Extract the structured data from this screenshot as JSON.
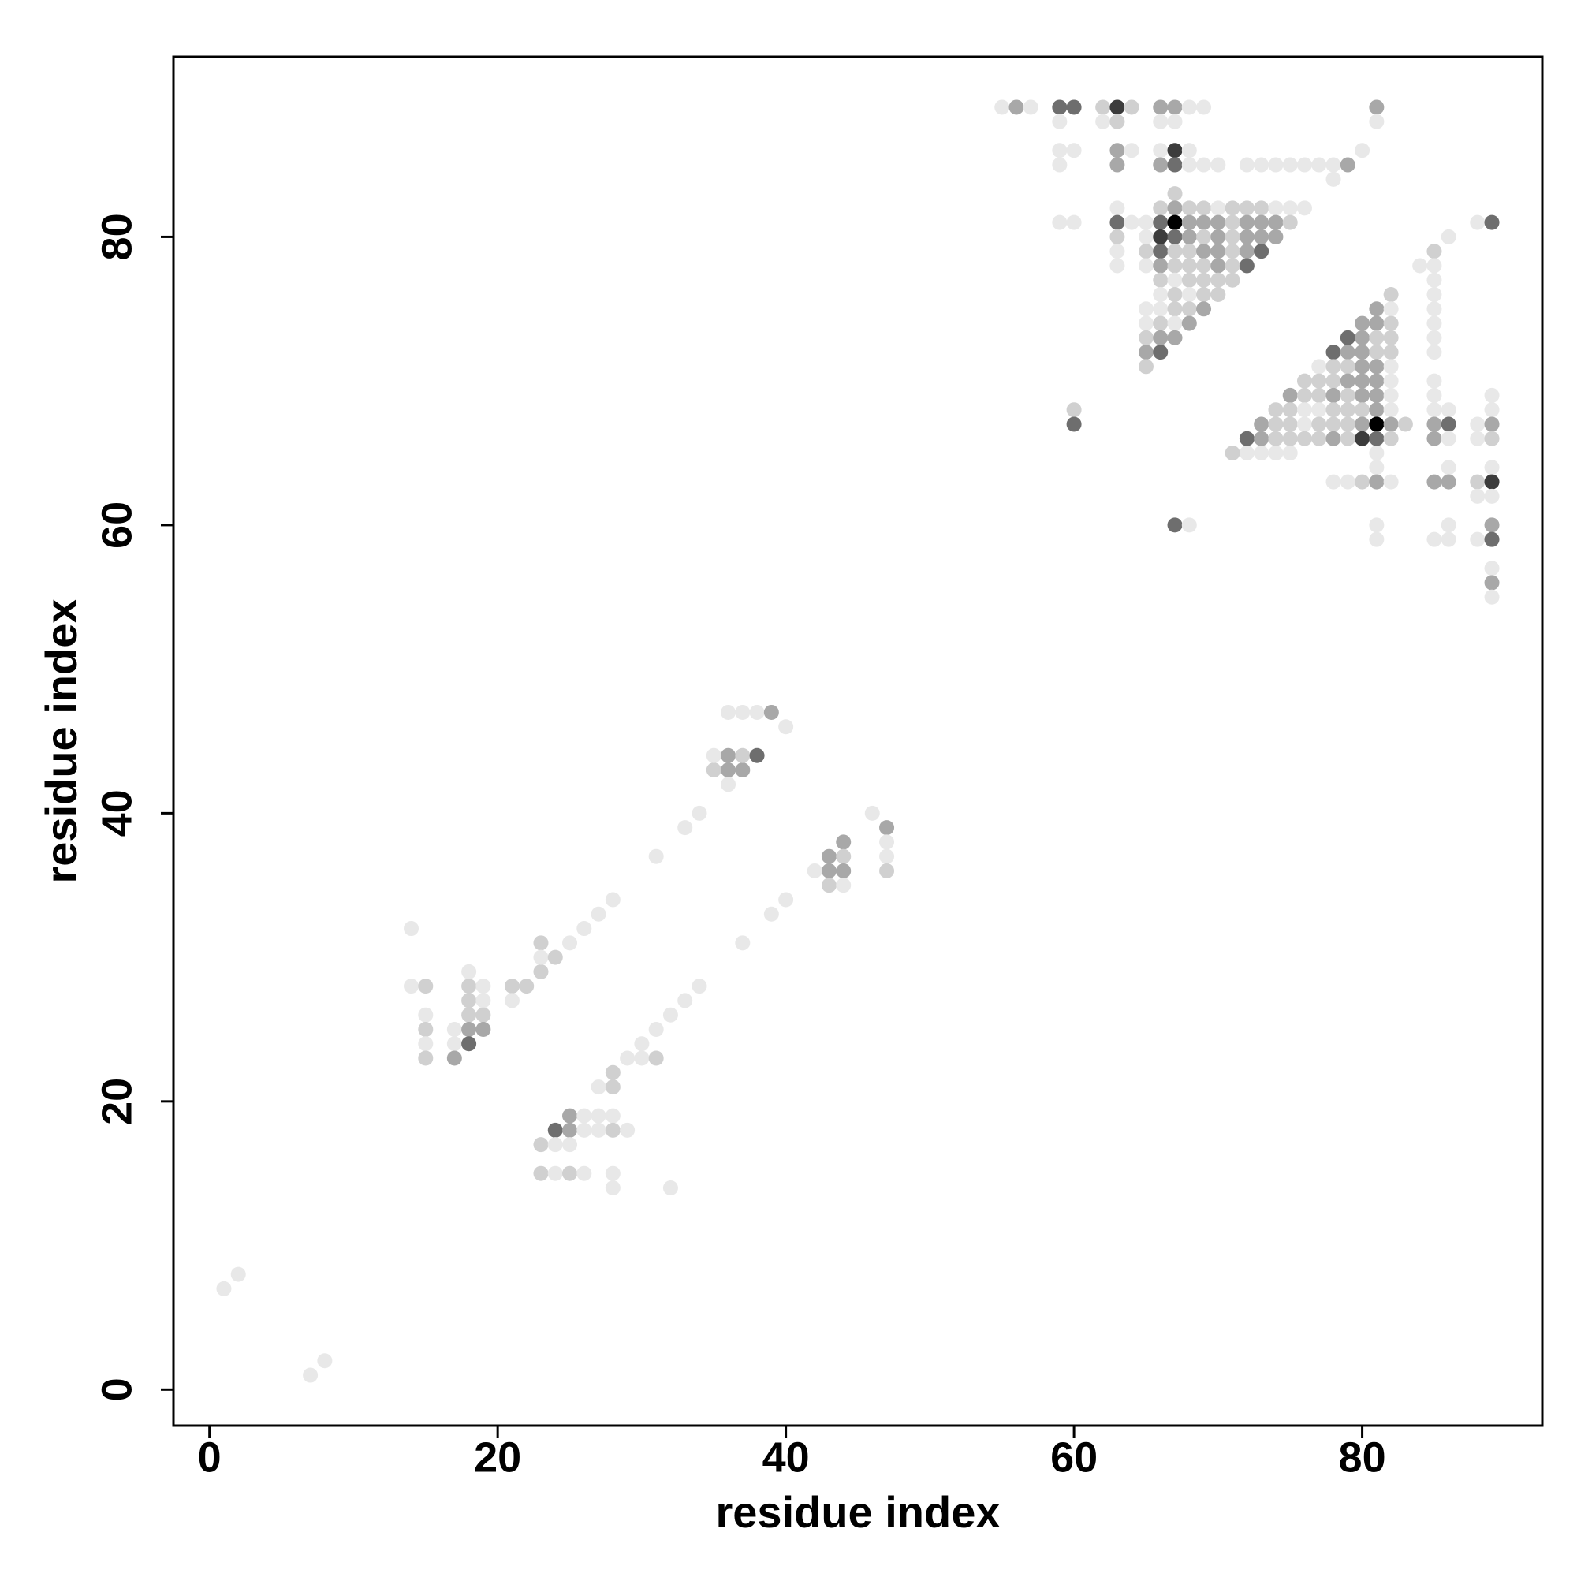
{
  "chart_data": {
    "type": "scatter",
    "xlabel": "residue index",
    "ylabel": "residue index",
    "xlim": [
      -2.5,
      92.5
    ],
    "ylim": [
      -2.5,
      92.5
    ],
    "xticks": [
      0,
      20,
      40,
      60,
      80
    ],
    "yticks": [
      0,
      20,
      40,
      60,
      80
    ],
    "grid": false,
    "x": [
      1,
      2,
      7,
      8,
      14,
      14,
      15,
      18,
      19,
      21,
      22,
      18,
      23,
      18,
      19,
      21,
      15,
      18,
      19,
      15,
      17,
      18,
      19,
      15,
      17,
      18,
      15,
      17,
      23,
      25,
      23,
      24,
      26,
      27,
      28,
      31,
      33,
      34,
      35,
      36,
      37,
      35,
      36,
      37,
      38,
      36,
      36,
      37,
      38,
      39,
      40,
      46,
      47,
      44,
      47,
      43,
      44,
      47,
      42,
      43,
      44,
      47,
      43,
      44,
      40,
      39,
      37,
      34,
      33,
      32,
      31,
      30,
      29,
      30,
      31,
      28,
      27,
      28,
      25,
      26,
      27,
      28,
      24,
      25,
      26,
      27,
      28,
      29,
      23,
      24,
      25,
      23,
      24,
      25,
      26,
      28,
      28,
      32,
      55,
      56,
      57,
      59,
      60,
      62,
      63,
      64,
      66,
      67,
      68,
      69,
      81,
      59,
      62,
      63,
      66,
      67,
      81,
      59,
      60,
      63,
      64,
      66,
      67,
      68,
      80,
      59,
      63,
      66,
      67,
      68,
      69,
      70,
      72,
      73,
      74,
      75,
      76,
      77,
      78,
      79,
      78,
      67,
      63,
      66,
      67,
      68,
      69,
      70,
      71,
      72,
      73,
      74,
      75,
      76,
      59,
      60,
      63,
      64,
      65,
      66,
      67,
      68,
      69,
      70,
      71,
      72,
      73,
      74,
      75,
      88,
      89,
      63,
      65,
      66,
      67,
      68,
      69,
      70,
      71,
      72,
      73,
      74,
      86,
      63,
      65,
      66,
      67,
      68,
      69,
      70,
      71,
      72,
      73,
      85,
      63,
      65,
      66,
      67,
      68,
      69,
      70,
      71,
      72,
      84,
      85,
      66,
      67,
      68,
      69,
      70,
      71,
      85,
      66,
      67,
      68,
      69,
      70,
      82,
      85,
      65,
      66,
      67,
      68,
      69,
      81,
      82,
      85,
      65,
      66,
      67,
      68,
      80,
      81,
      82,
      85,
      65,
      66,
      67,
      79,
      80,
      81,
      82,
      85,
      65,
      66,
      78,
      79,
      80,
      81,
      82,
      85,
      65,
      77,
      78,
      79,
      80,
      81,
      82,
      76,
      77,
      78,
      79,
      80,
      81,
      82,
      85,
      75,
      76,
      77,
      78,
      79,
      80,
      81,
      82,
      85,
      89,
      60,
      74,
      75,
      76,
      77,
      78,
      79,
      80,
      81,
      82,
      85,
      86,
      89,
      60,
      73,
      74,
      75,
      76,
      77,
      78,
      79,
      80,
      81,
      82,
      83,
      85,
      86,
      88,
      89,
      72,
      73,
      74,
      75,
      76,
      77,
      78,
      79,
      80,
      81,
      82,
      85,
      86,
      88,
      89,
      71,
      72,
      73,
      74,
      75,
      81,
      81,
      86,
      89,
      78,
      79,
      80,
      81,
      82,
      85,
      86,
      88,
      89,
      88,
      89,
      67,
      68,
      81,
      86,
      89,
      81,
      85,
      86,
      88,
      89,
      89,
      89,
      89
    ],
    "values": [
      7,
      8,
      1,
      2,
      32,
      28,
      28,
      28,
      28,
      28,
      28,
      29,
      29,
      27,
      27,
      27,
      26,
      26,
      26,
      25,
      25,
      25,
      25,
      24,
      24,
      24,
      23,
      23,
      31,
      31,
      30,
      30,
      32,
      33,
      34,
      37,
      39,
      40,
      43,
      43,
      43,
      44,
      44,
      44,
      44,
      42,
      47,
      47,
      47,
      47,
      46,
      40,
      39,
      38,
      38,
      37,
      37,
      37,
      36,
      36,
      36,
      36,
      35,
      35,
      34,
      33,
      31,
      28,
      27,
      26,
      25,
      24,
      23,
      23,
      23,
      22,
      21,
      21,
      19,
      19,
      19,
      19,
      18,
      18,
      18,
      18,
      18,
      18,
      17,
      17,
      17,
      15,
      15,
      15,
      15,
      15,
      14,
      14,
      89,
      89,
      89,
      89,
      89,
      89,
      89,
      89,
      89,
      89,
      89,
      89,
      89,
      88,
      88,
      88,
      88,
      88,
      88,
      86,
      86,
      86,
      86,
      86,
      86,
      86,
      86,
      85,
      85,
      85,
      85,
      85,
      85,
      85,
      85,
      85,
      85,
      85,
      85,
      85,
      85,
      85,
      84,
      83,
      82,
      82,
      82,
      82,
      82,
      82,
      82,
      82,
      82,
      82,
      82,
      82,
      81,
      81,
      81,
      81,
      81,
      81,
      81,
      81,
      81,
      81,
      81,
      81,
      81,
      81,
      81,
      81,
      81,
      80,
      80,
      80,
      80,
      80,
      80,
      80,
      80,
      80,
      80,
      80,
      80,
      79,
      79,
      79,
      79,
      79,
      79,
      79,
      79,
      79,
      79,
      79,
      78,
      78,
      78,
      78,
      78,
      78,
      78,
      78,
      78,
      78,
      78,
      77,
      77,
      77,
      77,
      77,
      77,
      77,
      76,
      76,
      76,
      76,
      76,
      76,
      76,
      75,
      75,
      75,
      75,
      75,
      75,
      75,
      75,
      74,
      74,
      74,
      74,
      74,
      74,
      74,
      74,
      73,
      73,
      73,
      73,
      73,
      73,
      73,
      73,
      72,
      72,
      72,
      72,
      72,
      72,
      72,
      72,
      71,
      71,
      71,
      71,
      71,
      71,
      71,
      70,
      70,
      70,
      70,
      70,
      70,
      70,
      70,
      69,
      69,
      69,
      69,
      69,
      69,
      69,
      69,
      69,
      69,
      68,
      68,
      68,
      68,
      68,
      68,
      68,
      68,
      68,
      68,
      68,
      68,
      68,
      67,
      67,
      67,
      67,
      67,
      67,
      67,
      67,
      67,
      67,
      67,
      67,
      67,
      67,
      67,
      67,
      66,
      66,
      66,
      66,
      66,
      66,
      66,
      66,
      66,
      66,
      66,
      66,
      66,
      66,
      66,
      65,
      65,
      65,
      65,
      65,
      65,
      64,
      64,
      64,
      63,
      63,
      63,
      63,
      63,
      63,
      63,
      63,
      63,
      62,
      62,
      60,
      60,
      60,
      60,
      60,
      59,
      59,
      59,
      59,
      59,
      57,
      56,
      55
    ],
    "colors": [
      "#e8e8e8",
      "#e8e8e8",
      "#e8e8e8",
      "#e8e8e8",
      "#e8e8e8",
      "#e8e8e8",
      "#d0d0d0",
      "#d0d0d0",
      "#e8e8e8",
      "#d0d0d0",
      "#d0d0d0",
      "#e8e8e8",
      "#d0d0d0",
      "#d0d0d0",
      "#e8e8e8",
      "#e8e8e8",
      "#e8e8e8",
      "#d0d0d0",
      "#d0d0d0",
      "#d0d0d0",
      "#e8e8e8",
      "#a8a8a8",
      "#a8a8a8",
      "#e8e8e8",
      "#e8e8e8",
      "#6e6e6e",
      "#d0d0d0",
      "#a8a8a8",
      "#d0d0d0",
      "#e8e8e8",
      "#e8e8e8",
      "#d0d0d0",
      "#e8e8e8",
      "#e8e8e8",
      "#e8e8e8",
      "#e8e8e8",
      "#e8e8e8",
      "#e8e8e8",
      "#d0d0d0",
      "#a8a8a8",
      "#a8a8a8",
      "#e8e8e8",
      "#a8a8a8",
      "#d0d0d0",
      "#6e6e6e",
      "#e8e8e8",
      "#e8e8e8",
      "#e8e8e8",
      "#e8e8e8",
      "#a8a8a8",
      "#e8e8e8",
      "#e8e8e8",
      "#a8a8a8",
      "#a8a8a8",
      "#e8e8e8",
      "#a8a8a8",
      "#d0d0d0",
      "#e8e8e8",
      "#e8e8e8",
      "#a8a8a8",
      "#a8a8a8",
      "#d0d0d0",
      "#d0d0d0",
      "#e8e8e8",
      "#e8e8e8",
      "#e8e8e8",
      "#e8e8e8",
      "#e8e8e8",
      "#e8e8e8",
      "#e8e8e8",
      "#e8e8e8",
      "#e8e8e8",
      "#e8e8e8",
      "#e8e8e8",
      "#d0d0d0",
      "#d0d0d0",
      "#e8e8e8",
      "#d0d0d0",
      "#a8a8a8",
      "#e8e8e8",
      "#e8e8e8",
      "#e8e8e8",
      "#6e6e6e",
      "#a8a8a8",
      "#e8e8e8",
      "#e8e8e8",
      "#d0d0d0",
      "#e8e8e8",
      "#d0d0d0",
      "#e8e8e8",
      "#e8e8e8",
      "#d0d0d0",
      "#e8e8e8",
      "#d0d0d0",
      "#e8e8e8",
      "#e8e8e8",
      "#e8e8e8",
      "#e8e8e8",
      "#e8e8e8",
      "#a8a8a8",
      "#e8e8e8",
      "#6e6e6e",
      "#6e6e6e",
      "#d0d0d0",
      "#3c3c3c",
      "#d0d0d0",
      "#a8a8a8",
      "#a8a8a8",
      "#e8e8e8",
      "#e8e8e8",
      "#a8a8a8",
      "#e8e8e8",
      "#e8e8e8",
      "#d0d0d0",
      "#e8e8e8",
      "#e8e8e8",
      "#e8e8e8",
      "#e8e8e8",
      "#e8e8e8",
      "#a8a8a8",
      "#e8e8e8",
      "#e8e8e8",
      "#3c3c3c",
      "#e8e8e8",
      "#e8e8e8",
      "#e8e8e8",
      "#a8a8a8",
      "#a8a8a8",
      "#6e6e6e",
      "#e8e8e8",
      "#e8e8e8",
      "#e8e8e8",
      "#e8e8e8",
      "#e8e8e8",
      "#e8e8e8",
      "#e8e8e8",
      "#e8e8e8",
      "#e8e8e8",
      "#e8e8e8",
      "#a8a8a8",
      "#e8e8e8",
      "#d0d0d0",
      "#e8e8e8",
      "#d0d0d0",
      "#a8a8a8",
      "#d0d0d0",
      "#d0d0d0",
      "#e8e8e8",
      "#d0d0d0",
      "#d0d0d0",
      "#d0d0d0",
      "#e8e8e8",
      "#e8e8e8",
      "#e8e8e8",
      "#e8e8e8",
      "#e8e8e8",
      "#6e6e6e",
      "#e8e8e8",
      "#e8e8e8",
      "#6e6e6e",
      "#000000",
      "#a8a8a8",
      "#a8a8a8",
      "#a8a8a8",
      "#d0d0d0",
      "#a8a8a8",
      "#a8a8a8",
      "#a8a8a8",
      "#d0d0d0",
      "#e8e8e8",
      "#6e6e6e",
      "#d0d0d0",
      "#e8e8e8",
      "#3c3c3c",
      "#6e6e6e",
      "#a8a8a8",
      "#d0d0d0",
      "#a8a8a8",
      "#d0d0d0",
      "#a8a8a8",
      "#a8a8a8",
      "#a8a8a8",
      "#e8e8e8",
      "#e8e8e8",
      "#d0d0d0",
      "#6e6e6e",
      "#d0d0d0",
      "#d0d0d0",
      "#a8a8a8",
      "#a8a8a8",
      "#d0d0d0",
      "#a8a8a8",
      "#6e6e6e",
      "#d0d0d0",
      "#e8e8e8",
      "#e8e8e8",
      "#a8a8a8",
      "#d0d0d0",
      "#d0d0d0",
      "#d0d0d0",
      "#a8a8a8",
      "#d0d0d0",
      "#6e6e6e",
      "#e8e8e8",
      "#e8e8e8",
      "#d0d0d0",
      "#e8e8e8",
      "#d0d0d0",
      "#d0d0d0",
      "#d0d0d0",
      "#d0d0d0",
      "#e8e8e8",
      "#e8e8e8",
      "#d0d0d0",
      "#e8e8e8",
      "#d0d0d0",
      "#d0d0d0",
      "#d0d0d0",
      "#e8e8e8",
      "#e8e8e8",
      "#e8e8e8",
      "#d0d0d0",
      "#d0d0d0",
      "#a8a8a8",
      "#a8a8a8",
      "#e8e8e8",
      "#e8e8e8",
      "#e8e8e8",
      "#d0d0d0",
      "#e8e8e8",
      "#a8a8a8",
      "#a8a8a8",
      "#a8a8a8",
      "#d0d0d0",
      "#e8e8e8",
      "#d0d0d0",
      "#a8a8a8",
      "#a8a8a8",
      "#6e6e6e",
      "#a8a8a8",
      "#d0d0d0",
      "#d0d0d0",
      "#e8e8e8",
      "#a8a8a8",
      "#6e6e6e",
      "#6e6e6e",
      "#a8a8a8",
      "#a8a8a8",
      "#d0d0d0",
      "#d0d0d0",
      "#e8e8e8",
      "#d0d0d0",
      "#e8e8e8",
      "#d0d0d0",
      "#d0d0d0",
      "#a8a8a8",
      "#a8a8a8",
      "#e8e8e8",
      "#d0d0d0",
      "#d0d0d0",
      "#d0d0d0",
      "#a8a8a8",
      "#a8a8a8",
      "#a8a8a8",
      "#e8e8e8",
      "#e8e8e8",
      "#a8a8a8",
      "#d0d0d0",
      "#d0d0d0",
      "#a8a8a8",
      "#d0d0d0",
      "#a8a8a8",
      "#a8a8a8",
      "#e8e8e8",
      "#e8e8e8",
      "#e8e8e8",
      "#d0d0d0",
      "#d0d0d0",
      "#d0d0d0",
      "#e8e8e8",
      "#e8e8e8",
      "#d0d0d0",
      "#d0d0d0",
      "#d0d0d0",
      "#a8a8a8",
      "#e8e8e8",
      "#e8e8e8",
      "#e8e8e8",
      "#e8e8e8",
      "#6e6e6e",
      "#a8a8a8",
      "#d0d0d0",
      "#d0d0d0",
      "#e8e8e8",
      "#d0d0d0",
      "#d0d0d0",
      "#d0d0d0",
      "#a8a8a8",
      "#000000",
      "#a8a8a8",
      "#d0d0d0",
      "#a8a8a8",
      "#6e6e6e",
      "#e8e8e8",
      "#a8a8a8",
      "#6e6e6e",
      "#a8a8a8",
      "#d0d0d0",
      "#d0d0d0",
      "#d0d0d0",
      "#d0d0d0",
      "#a8a8a8",
      "#d0d0d0",
      "#3c3c3c",
      "#6e6e6e",
      "#d0d0d0",
      "#a8a8a8",
      "#e8e8e8",
      "#e8e8e8",
      "#d0d0d0",
      "#d0d0d0",
      "#e8e8e8",
      "#e8e8e8",
      "#e8e8e8",
      "#e8e8e8",
      "#e8e8e8",
      "#e8e8e8",
      "#e8e8e8",
      "#e8e8e8",
      "#e8e8e8",
      "#e8e8e8",
      "#d0d0d0",
      "#a8a8a8",
      "#e8e8e8",
      "#a8a8a8",
      "#a8a8a8",
      "#d0d0d0",
      "#3c3c3c",
      "#e8e8e8",
      "#e8e8e8",
      "#6e6e6e",
      "#e8e8e8",
      "#e8e8e8",
      "#e8e8e8",
      "#a8a8a8",
      "#e8e8e8",
      "#e8e8e8",
      "#e8e8e8",
      "#e8e8e8",
      "#6e6e6e",
      "#e8e8e8",
      "#a8a8a8",
      "#e8e8e8"
    ]
  }
}
